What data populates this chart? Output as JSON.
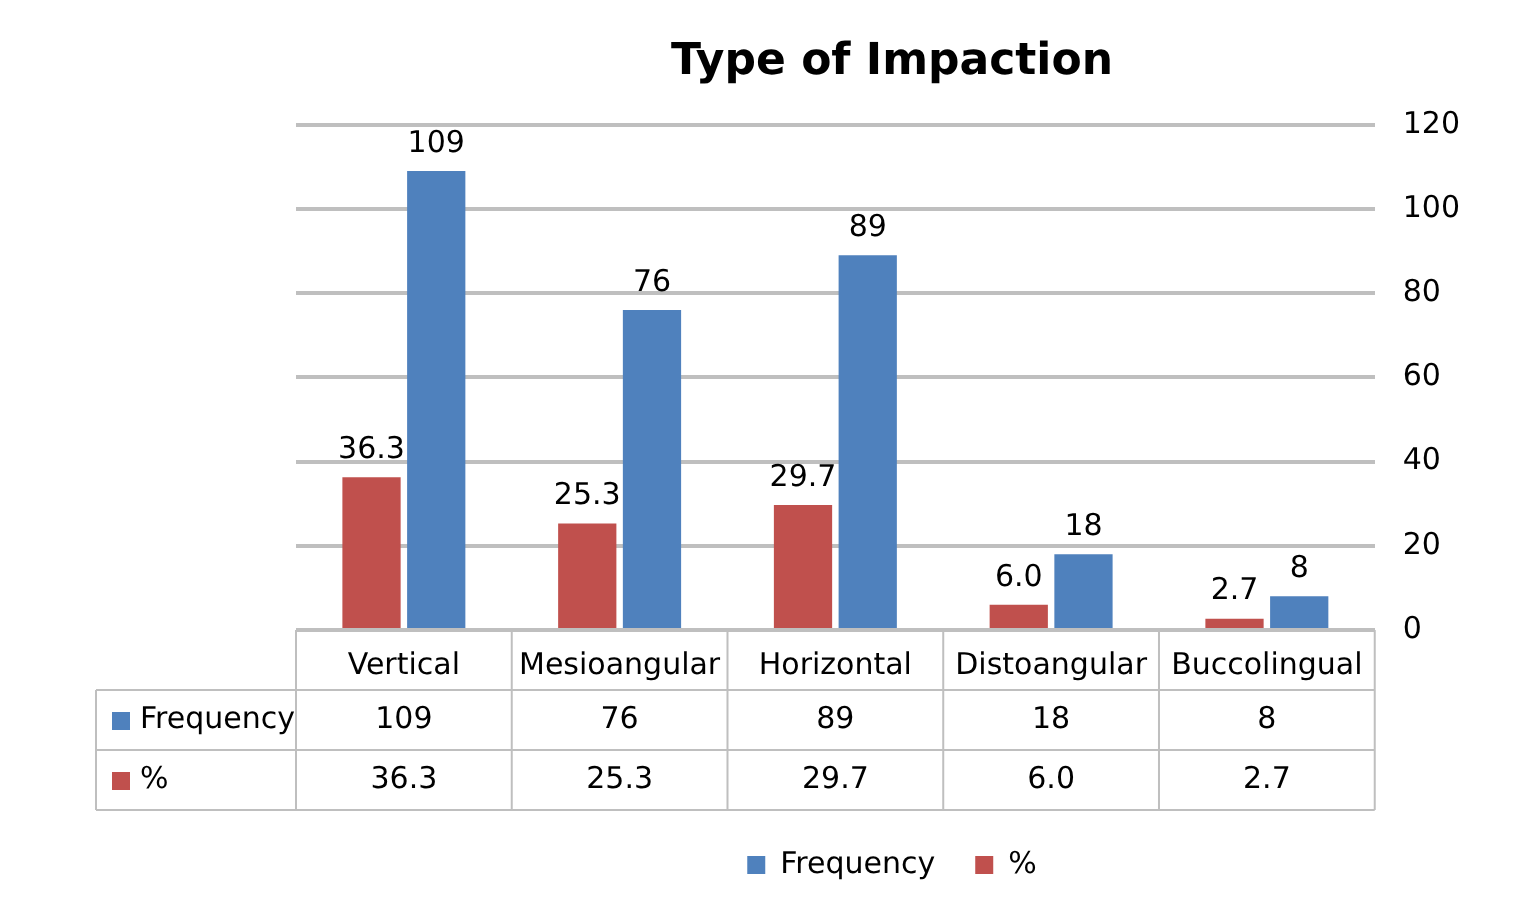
{
  "chart_data": {
    "type": "bar",
    "title": "Type of Impaction",
    "categories": [
      "Vertical",
      "Mesioangular",
      "Horizontal",
      "Distoangular",
      "Buccolingual"
    ],
    "series": [
      {
        "name": "%",
        "color": "#c0504d",
        "values": [
          36.3,
          25.3,
          29.7,
          6.0,
          2.7
        ],
        "value_labels": [
          "36.3",
          "25.3",
          "29.7",
          "6.0",
          "2.7"
        ]
      },
      {
        "name": "Frequency",
        "color": "#4f81bd",
        "values": [
          109,
          76,
          89,
          18,
          8
        ],
        "value_labels": [
          "109",
          "76",
          "89",
          "18",
          "8"
        ]
      }
    ],
    "ylim": [
      0,
      120
    ],
    "yticks": [
      0,
      20,
      40,
      60,
      80,
      100,
      120
    ],
    "grid": "y",
    "legend": "bottom"
  }
}
